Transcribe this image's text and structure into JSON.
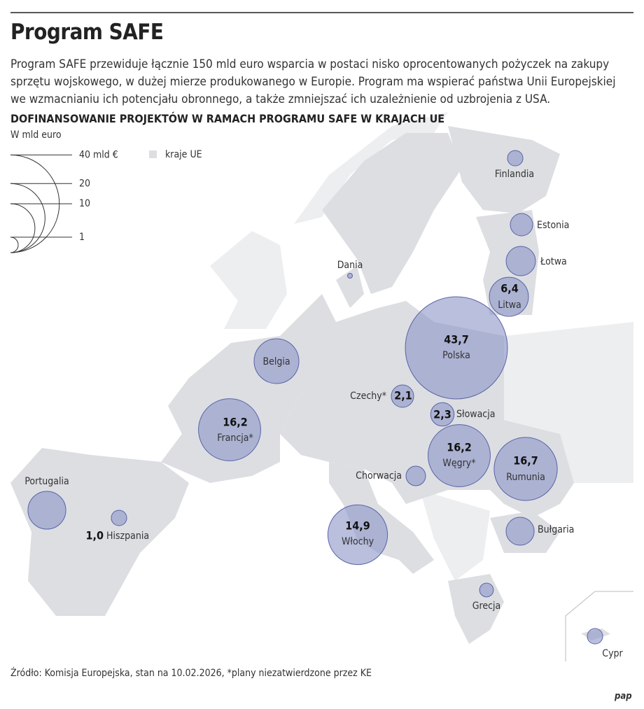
{
  "header": {
    "title": "Program SAFE",
    "intro": "Program SAFE przewiduje łącznie 150 mld euro wsparcia w postaci nisko oprocentowanych pożyczek na zakupy sprzętu wojskowego, w dużej mierze produkowanego w Europie. Program ma wspierać państwa Unii Europejskiej we wzmacnianiu ich potencjału obronnego, a także zmniejszać ich uzależnienie od uzbrojenia z USA."
  },
  "map": {
    "subtitle": "DOFINANSOWANIE PROJEKTÓW W RAMACH PROGRAMU SAFE W KRAJACH UE",
    "unit": "W mld euro",
    "legend": {
      "sizes": [
        {
          "value": 40,
          "label": "40 mld €"
        },
        20,
        10,
        1
      ],
      "eu_label": "kraje UE"
    },
    "countries": [
      {
        "name": "Finlandia",
        "value": 1.0
      },
      {
        "name": "Estonia",
        "value": 2.1
      },
      {
        "name": "Łotwa",
        "value": 3.6
      },
      {
        "name": "Litwa",
        "value": 6.4,
        "value_label": "6,4"
      },
      {
        "name": "Polska",
        "value": 43.7,
        "value_label": "43,7"
      },
      {
        "name": "Dania",
        "value": 0.1
      },
      {
        "name": "Belgia",
        "value": 8.4
      },
      {
        "name": "Czechy*",
        "value": 2.1,
        "value_label": "2,1"
      },
      {
        "name": "Słowacja",
        "value": 2.3,
        "value_label": "2,3"
      },
      {
        "name": "Francja*",
        "value": 16.2,
        "value_label": "16,2"
      },
      {
        "name": "Węgry*",
        "value": 16.2,
        "value_label": "16,2"
      },
      {
        "name": "Rumunia",
        "value": 16.7,
        "value_label": "16,7"
      },
      {
        "name": "Chorwacja",
        "value": 1.6
      },
      {
        "name": "Portugalia",
        "value": 6.0
      },
      {
        "name": "Hiszpania",
        "value": 1.0,
        "value_label": "1,0"
      },
      {
        "name": "Włochy",
        "value": 14.9,
        "value_label": "14,9"
      },
      {
        "name": "Bułgaria",
        "value": 3.3
      },
      {
        "name": "Grecja",
        "value": 0.8
      },
      {
        "name": "Cypr",
        "value": 1.0
      }
    ]
  },
  "footer": {
    "source": "Źródło: Komisja Europejska, stan na 10.02.2026, *plany niezatwierdzone przez KE",
    "logo": "pap"
  }
}
